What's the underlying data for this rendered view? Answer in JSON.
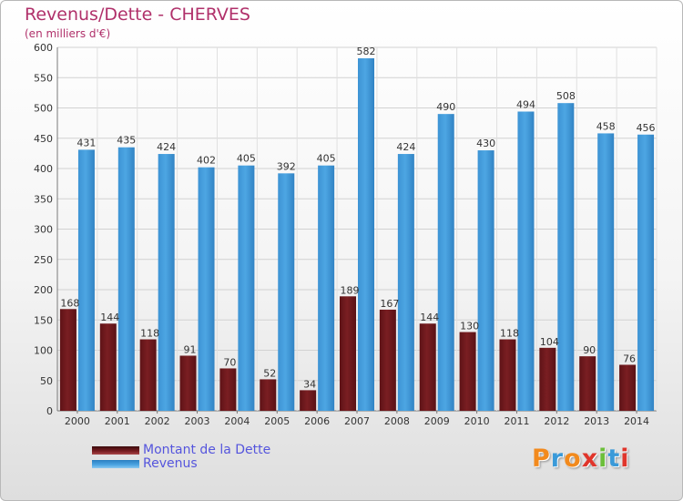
{
  "title": "Revenus/Dette - CHERVES",
  "subtitle": "(en milliers d'€)",
  "brand": {
    "letters": [
      "P",
      "r",
      "o",
      "x",
      "i",
      "t",
      "i"
    ],
    "colors": [
      "#f28a1d",
      "#3a9ad9",
      "#f28a1d",
      "#e0352b",
      "#6cbf3a",
      "#3a9ad9",
      "#e0352b"
    ]
  },
  "chart_data": {
    "type": "bar",
    "categories": [
      "2000",
      "2001",
      "2002",
      "2003",
      "2004",
      "2005",
      "2006",
      "2007",
      "2008",
      "2009",
      "2010",
      "2011",
      "2012",
      "2013",
      "2014"
    ],
    "series": [
      {
        "name": "Montant de la Dette",
        "color": "#7a1e22",
        "values": [
          168,
          144,
          118,
          91,
          70,
          52,
          34,
          189,
          167,
          144,
          130,
          118,
          104,
          90,
          76
        ]
      },
      {
        "name": "Revenus",
        "color": "#4da6e3",
        "values": [
          431,
          435,
          424,
          402,
          405,
          392,
          405,
          582,
          424,
          490,
          430,
          494,
          508,
          458,
          456
        ]
      }
    ],
    "ylim": [
      0,
      600
    ],
    "yticks": [
      0,
      50,
      100,
      150,
      200,
      250,
      300,
      350,
      400,
      450,
      500,
      550,
      600
    ],
    "grid": true,
    "legend_position": "bottom-left"
  }
}
